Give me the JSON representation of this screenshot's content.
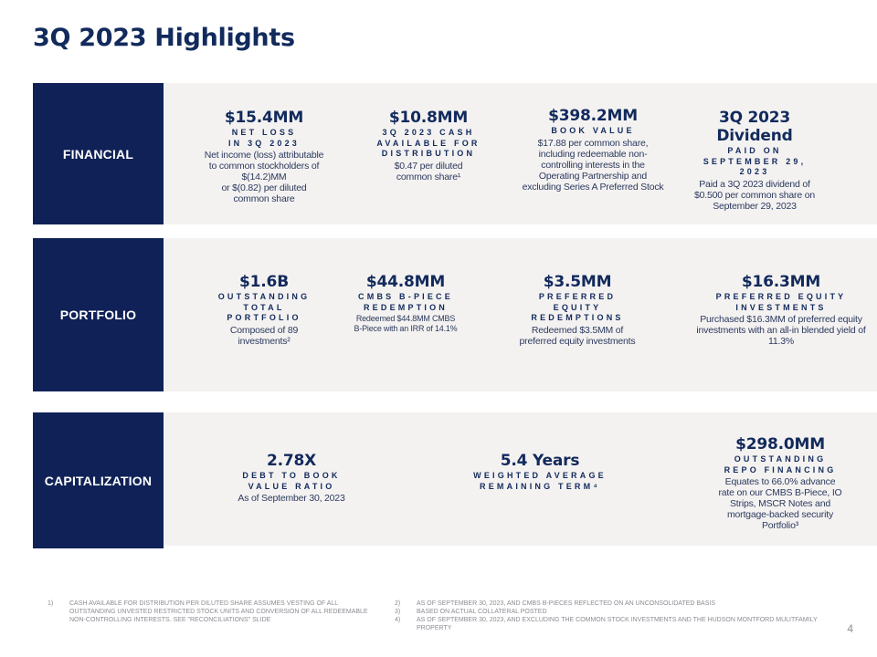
{
  "page": {
    "title": "3Q 2023 Highlights",
    "page_number": "4"
  },
  "sections": {
    "financial": {
      "label": "FINANCIAL",
      "items": [
        {
          "value": "$15.4MM",
          "sub": [
            "NET LOSS",
            "IN 3Q 2023"
          ],
          "desc": [
            "Net income (loss) attributable",
            "to common stockholders of",
            "$(14.2)MM",
            "or $(0.82) per diluted",
            "common share"
          ]
        },
        {
          "value": "$10.8MM",
          "sub": [
            "3Q 2023 CASH",
            "AVAILABLE FOR",
            "DISTRIBUTION"
          ],
          "desc": [
            "$0.47 per diluted",
            "common share¹"
          ]
        },
        {
          "value": "$398.2MM",
          "sub": [
            "BOOK VALUE"
          ],
          "desc": [
            "$17.88 per common share,",
            "including redeemable non-",
            "controlling interests in the",
            "Operating Partnership and",
            "excluding Series A Preferred Stock"
          ]
        },
        {
          "value": "3Q 2023 Dividend",
          "sub": [
            "PAID ON",
            "SEPTEMBER 29,",
            "2023"
          ],
          "desc": [
            "Paid a 3Q 2023 dividend of",
            "$0.500 per common share on",
            "September 29, 2023"
          ]
        }
      ]
    },
    "portfolio": {
      "label": "PORTFOLIO",
      "items": [
        {
          "value": "$1.6B",
          "sub": [
            "OUTSTANDING",
            "TOTAL",
            "PORTFOLIO"
          ],
          "desc": [
            "Composed of 89",
            "investments²"
          ]
        },
        {
          "value": "$44.8MM",
          "sub": [
            "CMBS B-PIECE",
            "REDEMPTION"
          ],
          "desc": [
            "Redeemed $44.8MM CMBS",
            "B-Piece with an IRR of 14.1%"
          ]
        },
        {
          "value": "$3.5MM",
          "sub": [
            "PREFERRED",
            "EQUITY",
            "REDEMPTIONS"
          ],
          "desc": [
            "Redeemed $3.5MM of",
            "preferred equity investments"
          ]
        },
        {
          "value": "$16.3MM",
          "sub": [
            "PREFERRED EQUITY",
            "INVESTMENTS"
          ],
          "desc": [
            "Purchased $16.3MM of preferred equity",
            "investments with an all-in blended yield of",
            "11.3%"
          ]
        }
      ]
    },
    "capitalization": {
      "label": "CAPITALIZATION",
      "items": [
        {
          "value": "2.78X",
          "sub": [
            "DEBT TO BOOK",
            "VALUE RATIO"
          ],
          "desc": [
            "As of September 30, 2023"
          ]
        },
        {
          "value": "5.4 Years",
          "sub": [
            "WEIGHTED AVERAGE",
            "REMAINING TERM⁴"
          ],
          "desc": []
        },
        {
          "value": "$298.0MM",
          "sub": [
            "OUTSTANDING",
            "REPO FINANCING"
          ],
          "desc": [
            "Equates to 66.0% advance",
            "rate on our CMBS B-Piece, IO",
            "Strips, MSCR Notes and",
            "mortgage-backed security",
            "Portfolio³"
          ]
        }
      ]
    }
  },
  "footnotes": [
    {
      "num": "1)",
      "text": "CASH AVAILABLE FOR DISTRIBUTION PER DILUTED SHARE ASSUMES VESTING OF ALL OUTSTANDING UNVESTED RESTRICTED STOCK UNITS AND CONVERSION OF ALL REDEEMABLE NON-CONTROLLING INTERESTS. SEE \"RECONCILIATIONS\" SLIDE"
    },
    {
      "num": "2)",
      "text": "AS OF SEPTEMBER 30, 2023, AND CMBS B-PIECES REFLECTED ON AN UNCONSOLIDATED BASIS"
    },
    {
      "num": "3)",
      "text": "BASED ON ACTUAL COLLATERAL POSTED"
    },
    {
      "num": "4)",
      "text": "AS OF SEPTEMBER 30, 2023, AND EXCLUDING THE COMMON STOCK INVESTMENTS AND THE HUDSON MONTFORD MULITFAMILY PROPERTY"
    }
  ]
}
